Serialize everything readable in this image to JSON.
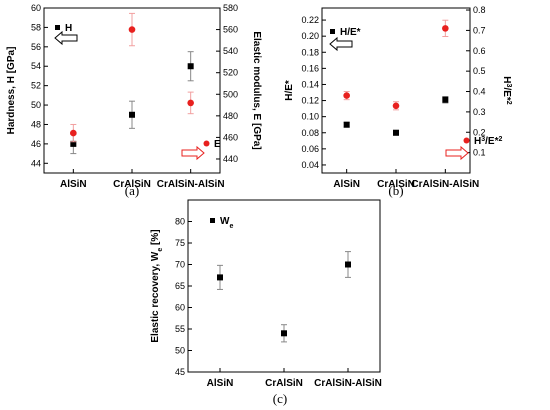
{
  "chart_data": [
    {
      "type": "scatter",
      "panel_label": "(a)",
      "categories": [
        "AlSiN",
        "CrAlSiN",
        "CrAlSiN-AlSiN"
      ],
      "ylabel": "Hardness,  H  [GPa]",
      "ylim": [
        43,
        60
      ],
      "yticks": [
        "44",
        "46",
        "48",
        "50",
        "52",
        "54",
        "56",
        "58",
        "60"
      ],
      "y2label": "Elastic modulus,  E  [GPa]",
      "y2lim": [
        427,
        580
      ],
      "y2ticks": [
        "440",
        "460",
        "480",
        "500",
        "520",
        "540",
        "560",
        "580"
      ],
      "series": [
        {
          "name": "H",
          "axis": "left",
          "marker": "square",
          "color": "#000000",
          "values": [
            46.0,
            49.0,
            54.0
          ],
          "errors": [
            1.0,
            1.4,
            1.5
          ]
        },
        {
          "name": "E",
          "axis": "right",
          "marker": "circle",
          "color": "#e8201e",
          "values": [
            464,
            560,
            492
          ],
          "errors": [
            8,
            15,
            10
          ]
        }
      ]
    },
    {
      "type": "scatter",
      "panel_label": "(b)",
      "categories": [
        "AlSiN",
        "CrAlSiN",
        "CrAlSiN-AlSiN"
      ],
      "ylabel": "H/E*",
      "ylim": [
        0.03,
        0.235
      ],
      "yticks": [
        "0.04",
        "0.06",
        "0.08",
        "0.10",
        "0.12",
        "0.14",
        "0.16",
        "0.18",
        "0.20",
        "0.22"
      ],
      "y2label": "H³/E*²",
      "y2lim": [
        0.0,
        0.81
      ],
      "y2ticks": [
        "0.1",
        "0.2",
        "0.3",
        "0.4",
        "0.5",
        "0.6",
        "0.7",
        "0.8"
      ],
      "series": [
        {
          "name": "H/E*",
          "axis": "left",
          "marker": "square",
          "color": "#000000",
          "values": [
            0.09,
            0.08,
            0.121
          ],
          "errors": [
            0.003,
            0.003,
            0.004
          ]
        },
        {
          "name": "H³/E*²",
          "axis": "right",
          "marker": "circle",
          "color": "#e8201e",
          "values": [
            0.38,
            0.33,
            0.71
          ],
          "errors": [
            0.02,
            0.02,
            0.04
          ]
        }
      ]
    },
    {
      "type": "scatter",
      "panel_label": "(c)",
      "categories": [
        "AlSiN",
        "CrAlSiN",
        "CrAlSiN-AlSiN"
      ],
      "ylabel": "Elastic recovery,  We  [%]",
      "ylim": [
        45,
        85
      ],
      "yticks": [
        "45",
        "50",
        "55",
        "60",
        "65",
        "70",
        "75",
        "80"
      ],
      "series": [
        {
          "name": "We",
          "axis": "left",
          "marker": "square",
          "color": "#000000",
          "values": [
            67,
            54,
            70
          ],
          "errors": [
            2.8,
            2.0,
            3.0
          ]
        }
      ]
    }
  ]
}
